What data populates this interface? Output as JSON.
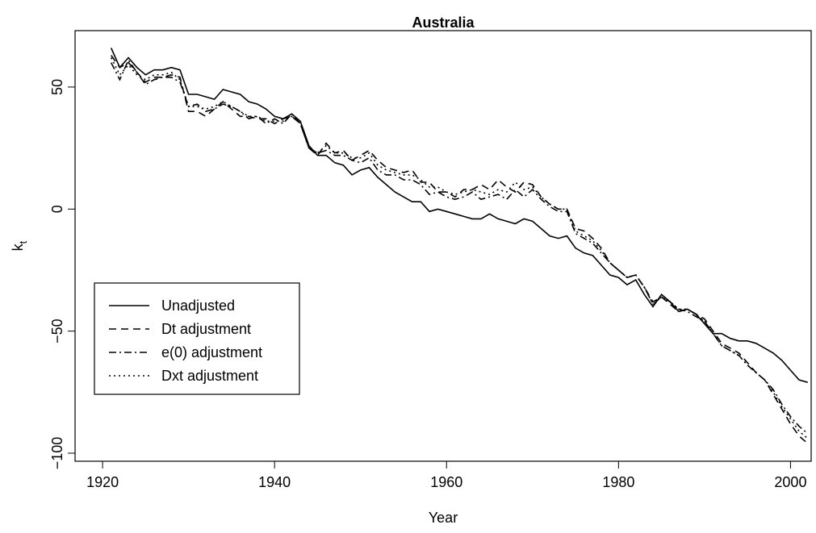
{
  "chart_data": {
    "type": "line",
    "title": "Australia",
    "x_label": "Year",
    "y_label": "k",
    "y_label_subscript": "t",
    "x": [
      1921,
      1922,
      1923,
      1924,
      1925,
      1926,
      1927,
      1928,
      1929,
      1930,
      1931,
      1932,
      1933,
      1934,
      1935,
      1936,
      1937,
      1938,
      1939,
      1940,
      1941,
      1942,
      1943,
      1944,
      1945,
      1946,
      1947,
      1948,
      1949,
      1950,
      1951,
      1952,
      1953,
      1954,
      1955,
      1956,
      1957,
      1958,
      1959,
      1960,
      1961,
      1962,
      1963,
      1964,
      1965,
      1966,
      1967,
      1968,
      1969,
      1970,
      1971,
      1972,
      1973,
      1974,
      1975,
      1976,
      1977,
      1978,
      1979,
      1980,
      1981,
      1982,
      1983,
      1984,
      1985,
      1986,
      1987,
      1988,
      1989,
      1990,
      1991,
      1992,
      1993,
      1994,
      1995,
      1996,
      1997,
      1998,
      1999,
      2000,
      2001,
      2002
    ],
    "series": [
      {
        "name": "Unadjusted",
        "color": "#000000",
        "line_style": "solid",
        "values": [
          66,
          58,
          62,
          58,
          55,
          57,
          57,
          58,
          57,
          47,
          47,
          46,
          45,
          49,
          48,
          47,
          44,
          43,
          41,
          38,
          37,
          39,
          36,
          26,
          22,
          22,
          19,
          18,
          14,
          16,
          17,
          13,
          10,
          7,
          5,
          3,
          3,
          -1,
          0,
          -1,
          -2,
          -3,
          -4,
          -4,
          -2,
          -4,
          -5,
          -6,
          -4,
          -5,
          -8,
          -11,
          -12,
          -11,
          -16,
          -18,
          -19,
          -23,
          -27,
          -28,
          -31,
          -29,
          -35,
          -40,
          -35,
          -38,
          -42,
          -41,
          -43,
          -47,
          -51,
          -51,
          -53,
          -54,
          -54,
          -55,
          -57,
          -59,
          -62,
          -66,
          -70,
          -71
        ]
      },
      {
        "name": "Dt adjustment",
        "color": "#000000",
        "line_style": "dashed",
        "values": [
          63,
          58,
          60,
          56,
          52,
          54,
          54,
          55,
          54,
          40,
          40,
          38,
          41,
          44,
          41,
          38,
          38,
          37,
          37,
          35,
          37,
          38,
          35,
          25,
          22,
          27,
          23,
          24,
          20,
          22,
          24,
          20,
          17,
          16,
          15,
          16,
          11,
          11,
          7,
          7,
          5,
          8,
          8,
          10,
          8,
          12,
          9,
          7,
          11,
          10,
          5,
          2,
          0,
          0,
          -8,
          -9,
          -12,
          -16,
          -22,
          -25,
          -28,
          -27,
          -32,
          -38,
          -36,
          -39,
          -42,
          -41,
          -43,
          -45,
          -50,
          -55,
          -57,
          -59,
          -63,
          -67,
          -70,
          -76,
          -82,
          -88,
          -93,
          -96
        ]
      },
      {
        "name": "e(0) adjustment",
        "color": "#000000",
        "line_style": "dashdot",
        "values": [
          60,
          53,
          61,
          56,
          51,
          53,
          54,
          54,
          52,
          42,
          43,
          40,
          41,
          43,
          42,
          40,
          37,
          38,
          35,
          37,
          35,
          39,
          35,
          25,
          23,
          24,
          22,
          22,
          20,
          19,
          21,
          16,
          14,
          14,
          12,
          12,
          10,
          6,
          7,
          5,
          4,
          5,
          7,
          4,
          5,
          6,
          4,
          8,
          5,
          8,
          4,
          1,
          -1,
          -1,
          -10,
          -12,
          -14,
          -18,
          -22,
          -25,
          -28,
          -27,
          -32,
          -39,
          -36,
          -38,
          -41,
          -42,
          -44,
          -46,
          -51,
          -56,
          -58,
          -60,
          -64,
          -67,
          -70,
          -74,
          -80,
          -85,
          -89,
          -92
        ]
      },
      {
        "name": "Dxt adjustment",
        "color": "#000000",
        "line_style": "dotted",
        "values": [
          62,
          55,
          59,
          55,
          53,
          55,
          55,
          56,
          53,
          42,
          42,
          41,
          42,
          44,
          42,
          40,
          38,
          38,
          36,
          36,
          36,
          38,
          35,
          25,
          23,
          26,
          23,
          23,
          21,
          21,
          23,
          18,
          16,
          15,
          14,
          14,
          12,
          9,
          9,
          7,
          6,
          7,
          8,
          7,
          6,
          8,
          7,
          11,
          8,
          9,
          5,
          2,
          0,
          0,
          -9,
          -11,
          -13,
          -17,
          -22,
          -25,
          -28,
          -27,
          -32,
          -39,
          -36,
          -38,
          -41,
          -41,
          -43,
          -46,
          -51,
          -56,
          -58,
          -60,
          -64,
          -67,
          -70,
          -75,
          -81,
          -86,
          -91,
          -94
        ]
      }
    ],
    "xlim": [
      1916.8,
      2002.4
    ],
    "xticks": [
      1920,
      1940,
      1960,
      1980,
      2000
    ],
    "ylim": [
      -103.3,
      73.1
    ],
    "yticks": [
      {
        "value": -100,
        "label": "−100"
      },
      {
        "value": -50,
        "label": "−50"
      },
      0,
      50
    ],
    "legend": "bottom-left",
    "grid": false
  }
}
